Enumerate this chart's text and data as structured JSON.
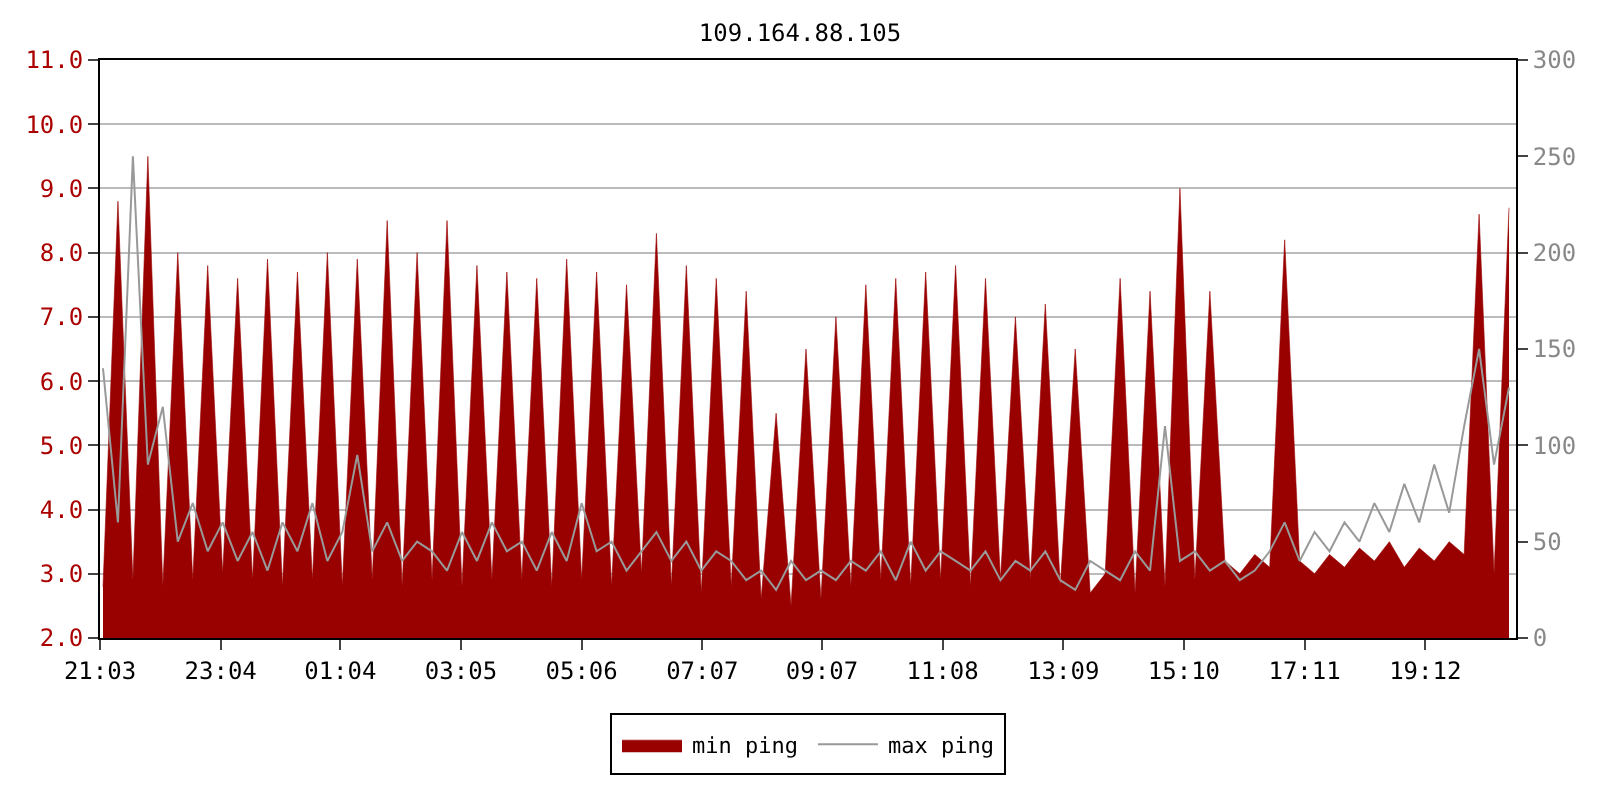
{
  "chart_data": {
    "type": "area",
    "title": "109.164.88.105",
    "x": [
      "--01-01T21:06",
      "--01-01T21:21",
      "--01-01T21:36",
      "--01-01T21:51",
      "--01-01T22:06",
      "--01-01T22:21",
      "--01-01T22:36",
      "--01-01T22:51",
      "--01-01T23:06",
      "--01-01T23:21",
      "--01-01T23:36",
      "--01-01T23:51",
      "--01-02T00:06",
      "--01-02T00:21",
      "--01-02T00:36",
      "--01-02T00:51",
      "--01-02T01:06",
      "--01-02T01:21",
      "--01-02T01:36",
      "--01-02T01:51",
      "--01-02T02:06",
      "--01-02T02:21",
      "--01-02T02:36",
      "--01-02T02:51",
      "--01-02T03:06",
      "--01-02T03:21",
      "--01-02T03:36",
      "--01-02T03:51",
      "--01-02T04:06",
      "--01-02T04:21",
      "--01-02T04:36",
      "--01-02T04:51",
      "--01-02T05:06",
      "--01-02T05:21",
      "--01-02T05:36",
      "--01-02T05:51",
      "--01-02T06:06",
      "--01-02T06:21",
      "--01-02T06:36",
      "--01-02T06:51",
      "--01-02T07:06",
      "--01-02T07:21",
      "--01-02T07:36",
      "--01-02T07:51",
      "--01-02T08:06",
      "--01-02T08:21",
      "--01-02T08:36",
      "--01-02T08:51",
      "--01-02T09:06",
      "--01-02T09:21",
      "--01-02T09:36",
      "--01-02T09:51",
      "--01-02T10:06",
      "--01-02T10:21",
      "--01-02T10:36",
      "--01-02T10:51",
      "--01-02T11:06",
      "--01-02T11:21",
      "--01-02T11:36",
      "--01-02T11:51",
      "--01-02T12:06",
      "--01-02T12:21",
      "--01-02T12:36",
      "--01-02T12:51",
      "--01-02T13:06",
      "--01-02T13:21",
      "--01-02T13:36",
      "--01-02T13:51",
      "--01-02T14:06",
      "--01-02T14:21",
      "--01-02T14:36",
      "--01-02T14:51",
      "--01-02T15:06",
      "--01-02T15:21",
      "--01-02T15:36",
      "--01-02T15:51",
      "--01-02T16:06",
      "--01-02T16:21",
      "--01-02T16:36",
      "--01-02T16:51",
      "--01-02T17:06",
      "--01-02T17:21",
      "--01-02T17:36",
      "--01-02T17:51",
      "--01-02T18:06",
      "--01-02T18:21",
      "--01-02T18:36",
      "--01-02T18:51",
      "--01-02T19:06",
      "--01-02T19:21",
      "--01-02T19:36",
      "--01-02T19:51",
      "--01-02T20:06",
      "--01-02T20:21",
      "--01-02T20:36"
    ],
    "series": [
      {
        "name": "min ping",
        "color": "#990000",
        "values": [
          2.8,
          8.8,
          2.9,
          9.5,
          2.8,
          8.0,
          2.9,
          7.8,
          3.0,
          7.6,
          2.9,
          7.9,
          2.8,
          7.7,
          2.9,
          8.0,
          2.8,
          7.9,
          2.9,
          8.5,
          2.8,
          8.0,
          2.9,
          8.5,
          2.8,
          7.8,
          2.9,
          7.7,
          2.9,
          7.6,
          2.8,
          7.9,
          2.9,
          7.7,
          2.8,
          7.5,
          3.0,
          8.3,
          2.8,
          7.8,
          2.7,
          7.6,
          2.8,
          7.4,
          2.6,
          5.5,
          2.5,
          6.5,
          2.6,
          7.0,
          2.8,
          7.5,
          2.9,
          7.6,
          2.8,
          7.7,
          2.9,
          7.8,
          2.8,
          7.6,
          2.9,
          7.0,
          2.9,
          7.2,
          2.8,
          6.5,
          2.7,
          3.0,
          7.6,
          2.7,
          7.4,
          2.8,
          9.0,
          2.9,
          7.4,
          3.2,
          3.0,
          3.3,
          3.1,
          8.2,
          3.2,
          3.0,
          3.3,
          3.1,
          3.4,
          3.2,
          3.5,
          3.1,
          3.4,
          3.2,
          3.5,
          3.3,
          8.6,
          3.0,
          8.7
        ]
      },
      {
        "name": "max ping",
        "type": "line",
        "axis": "y2",
        "color": "#999999",
        "values": [
          140,
          60,
          250,
          90,
          120,
          50,
          70,
          45,
          60,
          40,
          55,
          35,
          60,
          45,
          70,
          40,
          55,
          95,
          45,
          60,
          40,
          50,
          45,
          35,
          55,
          40,
          60,
          45,
          50,
          35,
          55,
          40,
          70,
          45,
          50,
          35,
          45,
          55,
          40,
          50,
          35,
          45,
          40,
          30,
          35,
          25,
          40,
          30,
          35,
          30,
          40,
          35,
          45,
          30,
          50,
          35,
          45,
          40,
          35,
          45,
          30,
          40,
          35,
          45,
          30,
          25,
          40,
          35,
          30,
          45,
          35,
          110,
          40,
          45,
          35,
          40,
          30,
          35,
          45,
          60,
          40,
          55,
          45,
          60,
          50,
          70,
          55,
          80,
          60,
          90,
          65,
          110,
          150,
          90,
          130
        ]
      }
    ],
    "xlim": [
      "--01-01T21:03",
      "--01-02T20:43"
    ],
    "xticks": [
      {
        "value": "--01-01T21:03",
        "label": "21:03"
      },
      {
        "value": "--01-01T23:04",
        "label": "23:04"
      },
      {
        "value": "--01-02T01:04",
        "label": "01:04"
      },
      {
        "value": "--01-02T03:05",
        "label": "03:05"
      },
      {
        "value": "--01-02T05:06",
        "label": "05:06"
      },
      {
        "value": "--01-02T07:07",
        "label": "07:07"
      },
      {
        "value": "--01-02T09:07",
        "label": "09:07"
      },
      {
        "value": "--01-02T11:08",
        "label": "11:08"
      },
      {
        "value": "--01-02T13:09",
        "label": "13:09"
      },
      {
        "value": "--01-02T15:10",
        "label": "15:10"
      },
      {
        "value": "--01-02T17:11",
        "label": "17:11"
      },
      {
        "value": "--01-02T19:12",
        "label": "19:12"
      }
    ],
    "ylim": [
      2.0,
      11.0
    ],
    "yticks": [
      {
        "value": 2,
        "label": "2.0"
      },
      {
        "value": 3,
        "label": "3.0"
      },
      {
        "value": 4,
        "label": "4.0"
      },
      {
        "value": 5,
        "label": "5.0"
      },
      {
        "value": 6,
        "label": "6.0"
      },
      {
        "value": 7,
        "label": "7.0"
      },
      {
        "value": 8,
        "label": "8.0"
      },
      {
        "value": 9,
        "label": "9.0"
      },
      {
        "value": 10,
        "label": "10.0"
      },
      {
        "value": 11,
        "label": "11.0"
      }
    ],
    "y2lim": [
      0,
      300
    ],
    "y2ticks": [
      0,
      50,
      100,
      150,
      200,
      250,
      300
    ],
    "grid": "y",
    "legend": "bottom"
  }
}
